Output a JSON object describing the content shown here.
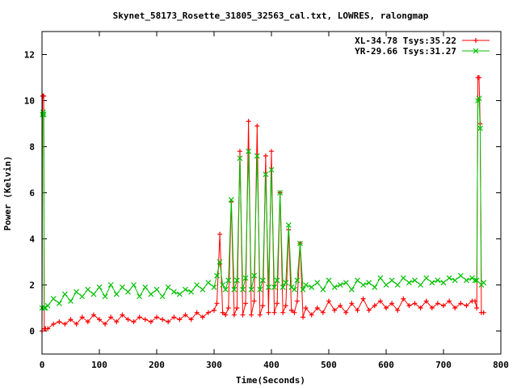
{
  "chart_data": {
    "type": "line",
    "title": "Skynet_58173_Rosette_31805_32563_cal.txt, LOWRES, ralongmap",
    "xlabel": "Time(Seconds)",
    "ylabel": "Power (Kelvin)",
    "xlim": [
      0,
      800
    ],
    "ylim": [
      -1,
      13
    ],
    "x_ticks": [
      0,
      100,
      200,
      300,
      400,
      500,
      600,
      700,
      800
    ],
    "y_ticks": [
      0,
      2,
      4,
      6,
      8,
      10,
      12
    ],
    "x_tick_labels": [
      "0",
      "100",
      "200",
      "300",
      "400",
      "500",
      "600",
      "700",
      "800"
    ],
    "y_tick_labels": [
      "0",
      "2",
      "4",
      "6",
      "8",
      "10",
      "12"
    ],
    "grid": false,
    "legend_position": "top-right",
    "series": [
      {
        "name": "XL-34.78 Tsys:35.22",
        "color": "#ff0000",
        "marker": "plus",
        "x": [
          0,
          1,
          2,
          3,
          4,
          6,
          10,
          20,
          30,
          40,
          50,
          60,
          70,
          80,
          90,
          100,
          110,
          120,
          130,
          140,
          150,
          160,
          170,
          180,
          190,
          200,
          210,
          220,
          230,
          240,
          250,
          260,
          270,
          280,
          290,
          300,
          305,
          310,
          315,
          320,
          325,
          330,
          335,
          340,
          345,
          350,
          355,
          360,
          365,
          370,
          375,
          380,
          385,
          390,
          395,
          400,
          405,
          410,
          415,
          420,
          425,
          430,
          435,
          440,
          445,
          450,
          455,
          460,
          470,
          480,
          490,
          500,
          510,
          520,
          530,
          540,
          550,
          560,
          570,
          580,
          590,
          600,
          610,
          620,
          630,
          640,
          650,
          660,
          670,
          680,
          690,
          700,
          710,
          720,
          730,
          740,
          750,
          755,
          758,
          760,
          762,
          764,
          766,
          770
        ],
        "y": [
          0.0,
          10.2,
          10.2,
          10.2,
          0.1,
          0.1,
          0.1,
          0.3,
          0.4,
          0.3,
          0.5,
          0.3,
          0.6,
          0.4,
          0.7,
          0.5,
          0.3,
          0.6,
          0.4,
          0.7,
          0.5,
          0.4,
          0.6,
          0.5,
          0.4,
          0.6,
          0.5,
          0.4,
          0.6,
          0.5,
          0.7,
          0.5,
          0.8,
          0.6,
          0.8,
          0.9,
          1.2,
          4.2,
          0.8,
          0.7,
          1.0,
          5.6,
          0.7,
          1.0,
          7.8,
          0.7,
          1.2,
          9.1,
          0.7,
          1.3,
          8.9,
          0.7,
          1.1,
          7.6,
          0.8,
          7.8,
          0.8,
          1.2,
          6.0,
          0.8,
          1.1,
          4.4,
          0.9,
          0.8,
          1.3,
          3.8,
          0.6,
          1.0,
          0.7,
          1.0,
          0.8,
          1.3,
          0.9,
          1.1,
          0.8,
          1.2,
          0.9,
          1.4,
          0.9,
          1.1,
          1.3,
          1.0,
          1.2,
          0.9,
          1.4,
          1.1,
          1.2,
          1.0,
          1.3,
          1.0,
          1.2,
          1.1,
          1.3,
          1.0,
          1.2,
          1.1,
          1.3,
          1.3,
          1.0,
          11.0,
          11.0,
          9.0,
          0.8,
          0.8
        ]
      },
      {
        "name": "YR-29.66 Tsys:31.27",
        "color": "#00c000",
        "marker": "cross",
        "x": [
          0,
          1,
          2,
          3,
          4,
          6,
          10,
          20,
          30,
          40,
          50,
          60,
          70,
          80,
          90,
          100,
          110,
          120,
          130,
          140,
          150,
          160,
          170,
          180,
          190,
          200,
          210,
          220,
          230,
          240,
          250,
          260,
          270,
          280,
          290,
          300,
          305,
          310,
          315,
          320,
          325,
          330,
          335,
          340,
          345,
          350,
          355,
          360,
          365,
          370,
          375,
          380,
          385,
          390,
          395,
          400,
          405,
          410,
          415,
          420,
          425,
          430,
          435,
          440,
          445,
          450,
          455,
          460,
          470,
          480,
          490,
          500,
          510,
          520,
          530,
          540,
          550,
          560,
          570,
          580,
          590,
          600,
          610,
          620,
          630,
          640,
          650,
          660,
          670,
          680,
          690,
          700,
          710,
          720,
          730,
          740,
          750,
          755,
          758,
          760,
          762,
          764,
          766,
          770
        ],
        "y": [
          1.0,
          9.4,
          9.5,
          9.4,
          1.0,
          1.0,
          1.1,
          1.4,
          1.2,
          1.6,
          1.3,
          1.7,
          1.5,
          1.8,
          1.6,
          1.9,
          1.5,
          2.0,
          1.6,
          1.9,
          1.7,
          2.0,
          1.5,
          1.9,
          1.6,
          1.8,
          1.5,
          1.9,
          1.7,
          1.6,
          1.8,
          1.7,
          2.0,
          1.8,
          2.1,
          1.9,
          2.4,
          3.0,
          2.0,
          1.8,
          2.2,
          5.7,
          1.8,
          2.2,
          7.5,
          1.8,
          2.3,
          7.8,
          1.8,
          2.4,
          7.6,
          1.8,
          2.2,
          6.8,
          1.9,
          7.0,
          1.9,
          2.2,
          6.0,
          1.9,
          2.1,
          4.6,
          1.9,
          1.8,
          2.2,
          3.8,
          1.8,
          2.0,
          1.9,
          2.1,
          1.8,
          2.2,
          1.9,
          2.0,
          2.1,
          1.8,
          2.2,
          2.0,
          2.1,
          1.9,
          2.3,
          2.0,
          2.2,
          2.0,
          2.3,
          2.1,
          2.2,
          2.0,
          2.3,
          2.1,
          2.2,
          2.1,
          2.3,
          2.2,
          2.4,
          2.2,
          2.3,
          2.2,
          2.2,
          10.0,
          10.1,
          8.8,
          2.0,
          2.1
        ]
      }
    ]
  }
}
